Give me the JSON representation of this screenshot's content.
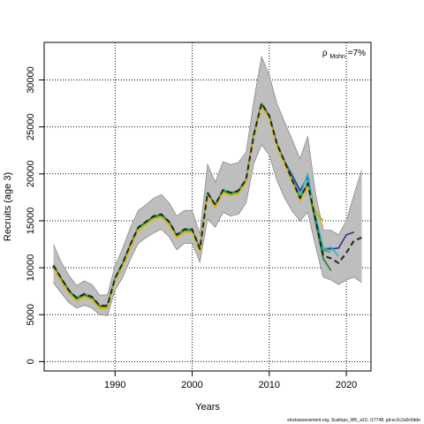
{
  "chart_data": {
    "type": "line",
    "xlabel": "Years",
    "ylabel": "Recruits (age 3)",
    "xlim": [
      1980.8,
      2023.2
    ],
    "ylim": [
      -1000,
      34000
    ],
    "xticks": [
      1990,
      2000,
      2010,
      2020
    ],
    "yticks": [
      0,
      5000,
      10000,
      15000,
      20000,
      25000,
      30000
    ],
    "grid": true,
    "annotation": {
      "rho_symbol": "ρ",
      "rho_subscript": "Mohn",
      "rho_value": "=7%"
    },
    "band": {
      "x": [
        1982,
        1983,
        1984,
        1985,
        1986,
        1987,
        1988,
        1989,
        1990,
        1991,
        1992,
        1993,
        1994,
        1995,
        1996,
        1997,
        1998,
        1999,
        2000,
        2001,
        2002,
        2003,
        2004,
        2005,
        2006,
        2007,
        2008,
        2009,
        2010,
        2011,
        2012,
        2013,
        2014,
        2015,
        2016,
        2017,
        2018,
        2019,
        2020,
        2021,
        2022
      ],
      "upper": [
        12500,
        10600,
        9200,
        8100,
        8600,
        8200,
        7100,
        7100,
        10200,
        12100,
        14300,
        16100,
        16700,
        17400,
        17800,
        16900,
        15500,
        16100,
        16100,
        13600,
        21000,
        19100,
        21300,
        21000,
        21200,
        22300,
        27800,
        32500,
        30500,
        27500,
        25500,
        23600,
        21600,
        24000,
        17900,
        14000,
        14000,
        13500,
        15000,
        17800,
        20400
      ],
      "lower": [
        8400,
        7300,
        6300,
        5700,
        6000,
        5700,
        5000,
        4900,
        7600,
        9000,
        10900,
        12600,
        13200,
        13700,
        14100,
        13300,
        11900,
        12600,
        12600,
        10600,
        15200,
        14300,
        15900,
        15500,
        15700,
        16900,
        21100,
        23100,
        22000,
        19300,
        17400,
        16000,
        15000,
        15900,
        12300,
        9000,
        8700,
        8200,
        8700,
        9000,
        8400
      ]
    },
    "series": [
      {
        "color": "#2E3192",
        "width": 1.6,
        "dash": "",
        "x": [
          1982,
          1983,
          1984,
          1985,
          1986,
          1987,
          1988,
          1989,
          1990,
          1991,
          1992,
          1993,
          1994,
          1995,
          1996,
          1997,
          1998,
          1999,
          2000,
          2001,
          2002,
          2003,
          2004,
          2005,
          2006,
          2007,
          2008,
          2009,
          2010,
          2011,
          2012,
          2013,
          2014,
          2015,
          2016,
          2017,
          2018,
          2019,
          2020,
          2021
        ],
        "values": [
          10250,
          8900,
          7600,
          6800,
          7200,
          6900,
          5950,
          5950,
          8900,
          10500,
          12500,
          14300,
          14900,
          15500,
          15700,
          14900,
          13500,
          14100,
          14100,
          12000,
          18000,
          16700,
          18300,
          18000,
          18200,
          19400,
          24200,
          27500,
          26200,
          23200,
          21300,
          19800,
          18200,
          19700,
          15000,
          12000,
          12000,
          12100,
          13500,
          13800
        ]
      },
      {
        "color": "#29B6D1",
        "width": 1.6,
        "dash": "",
        "x": [
          1982,
          1983,
          1984,
          1985,
          1986,
          1987,
          1988,
          1989,
          1990,
          1991,
          1992,
          1993,
          1994,
          1995,
          1996,
          1997,
          1998,
          1999,
          2000,
          2001,
          2002,
          2003,
          2004,
          2005,
          2006,
          2007,
          2008,
          2009,
          2010,
          2011,
          2012,
          2013,
          2014,
          2015,
          2016,
          2017,
          2018,
          2019
        ],
        "values": [
          10250,
          8900,
          7600,
          6800,
          7200,
          6900,
          5950,
          5950,
          8900,
          10500,
          12500,
          14300,
          14900,
          15500,
          15700,
          14900,
          13500,
          14100,
          14100,
          12000,
          18000,
          16700,
          18300,
          18000,
          18200,
          19400,
          24200,
          27500,
          26200,
          23200,
          21300,
          19500,
          17700,
          20000,
          15600,
          12000,
          12200,
          11200
        ]
      },
      {
        "color": "#2BAA78",
        "width": 1.6,
        "dash": "",
        "x": [
          1982,
          1983,
          1984,
          1985,
          1986,
          1987,
          1988,
          1989,
          1990,
          1991,
          1992,
          1993,
          1994,
          1995,
          1996,
          1997,
          1998,
          1999,
          2000,
          2001,
          2002,
          2003,
          2004,
          2005,
          2006,
          2007,
          2008,
          2009,
          2010,
          2011,
          2012,
          2013,
          2014,
          2015,
          2016,
          2017,
          2018
        ],
        "values": [
          10250,
          8900,
          7600,
          6800,
          7200,
          6900,
          5950,
          5950,
          8900,
          10500,
          12500,
          14300,
          14900,
          15500,
          15700,
          14900,
          13500,
          14100,
          14100,
          12000,
          18000,
          16700,
          18300,
          18000,
          18200,
          19400,
          24200,
          27500,
          26200,
          23200,
          21300,
          19300,
          17400,
          19000,
          15100,
          11800,
          11700
        ]
      },
      {
        "color": "#22893A",
        "width": 1.8,
        "dash": "",
        "x": [
          1982,
          1983,
          1984,
          1985,
          1986,
          1987,
          1988,
          1989,
          1990,
          1991,
          1992,
          1993,
          1994,
          1995,
          1996,
          1997,
          1998,
          1999,
          2000,
          2001,
          2002,
          2003,
          2004,
          2005,
          2006,
          2007,
          2008,
          2009,
          2010,
          2011,
          2012,
          2013,
          2014,
          2015,
          2016,
          2017,
          2018
        ],
        "values": [
          10150,
          8800,
          7500,
          6700,
          7100,
          6800,
          5850,
          5850,
          8800,
          10400,
          12400,
          14200,
          14800,
          15400,
          15600,
          14800,
          13400,
          14000,
          14000,
          11900,
          17900,
          16600,
          18200,
          17900,
          18100,
          19300,
          24100,
          27400,
          26100,
          23100,
          21200,
          19200,
          17300,
          18900,
          14900,
          11000,
          9700
        ]
      },
      {
        "color": "#9CB83A",
        "width": 1.6,
        "dash": "",
        "x": [
          1982,
          1983,
          1984,
          1985,
          1986,
          1987,
          1988,
          1989,
          1990,
          1991,
          1992,
          1993,
          1994,
          1995,
          1996,
          1997,
          1998,
          1999,
          2000,
          2001,
          2002,
          2003,
          2004,
          2005,
          2006,
          2007,
          2008,
          2009,
          2010,
          2011,
          2012,
          2013,
          2014,
          2015,
          2016,
          2017
        ],
        "values": [
          10000,
          8650,
          7350,
          6550,
          6950,
          6650,
          5750,
          5750,
          8650,
          10200,
          12200,
          14050,
          14650,
          15250,
          15450,
          14650,
          13250,
          13850,
          13850,
          11750,
          17750,
          16450,
          18050,
          17750,
          17950,
          19150,
          23950,
          27250,
          25950,
          22950,
          21050,
          19100,
          17200,
          18700,
          16000,
          15000
        ]
      },
      {
        "color": "#E8B40A",
        "width": 1.3,
        "dash": "",
        "x": [
          1982,
          1983,
          1984,
          1985,
          1986,
          1987,
          1988,
          1989,
          1990,
          1991,
          1992,
          1993,
          1994,
          1995,
          1996,
          1997,
          1998,
          1999,
          2000,
          2001,
          2002,
          2003,
          2004,
          2005,
          2006,
          2007,
          2008,
          2009,
          2010,
          2011,
          2012,
          2013,
          2014,
          2015,
          2016,
          2017
        ],
        "values": [
          9900,
          8550,
          7250,
          6450,
          6850,
          6550,
          5650,
          5650,
          8550,
          10100,
          12100,
          13950,
          14550,
          15150,
          15350,
          14550,
          13150,
          13750,
          13750,
          11650,
          17650,
          16350,
          17950,
          17650,
          17850,
          19050,
          23850,
          27150,
          25850,
          22850,
          20950,
          19000,
          17100,
          18600,
          16100,
          14400
        ]
      },
      {
        "color": "#222222",
        "width": 2.0,
        "dash": "6,4",
        "x": [
          1982,
          1983,
          1984,
          1985,
          1986,
          1987,
          1988,
          1989,
          1990,
          1991,
          1992,
          1993,
          1994,
          1995,
          1996,
          1997,
          1998,
          1999,
          2000,
          2001,
          2002,
          2003,
          2004,
          2005,
          2006,
          2007,
          2008,
          2009,
          2010,
          2011,
          2012,
          2013,
          2014,
          2015,
          2016,
          2017,
          2018,
          2019,
          2020,
          2021,
          2022
        ],
        "values": [
          10250,
          8900,
          7600,
          6800,
          7200,
          6900,
          5950,
          5950,
          8900,
          10500,
          12500,
          14300,
          14900,
          15500,
          15700,
          14900,
          13500,
          14100,
          14100,
          12000,
          18000,
          16700,
          18300,
          18000,
          18200,
          19400,
          24200,
          27500,
          26200,
          23200,
          21300,
          19300,
          17400,
          19000,
          15100,
          11300,
          11000,
          10500,
          11600,
          12900,
          13200
        ]
      }
    ]
  },
  "footer": "stockassessment.org, Scallops_WK_a10, r17748, git:ec2c2a0c6dde"
}
